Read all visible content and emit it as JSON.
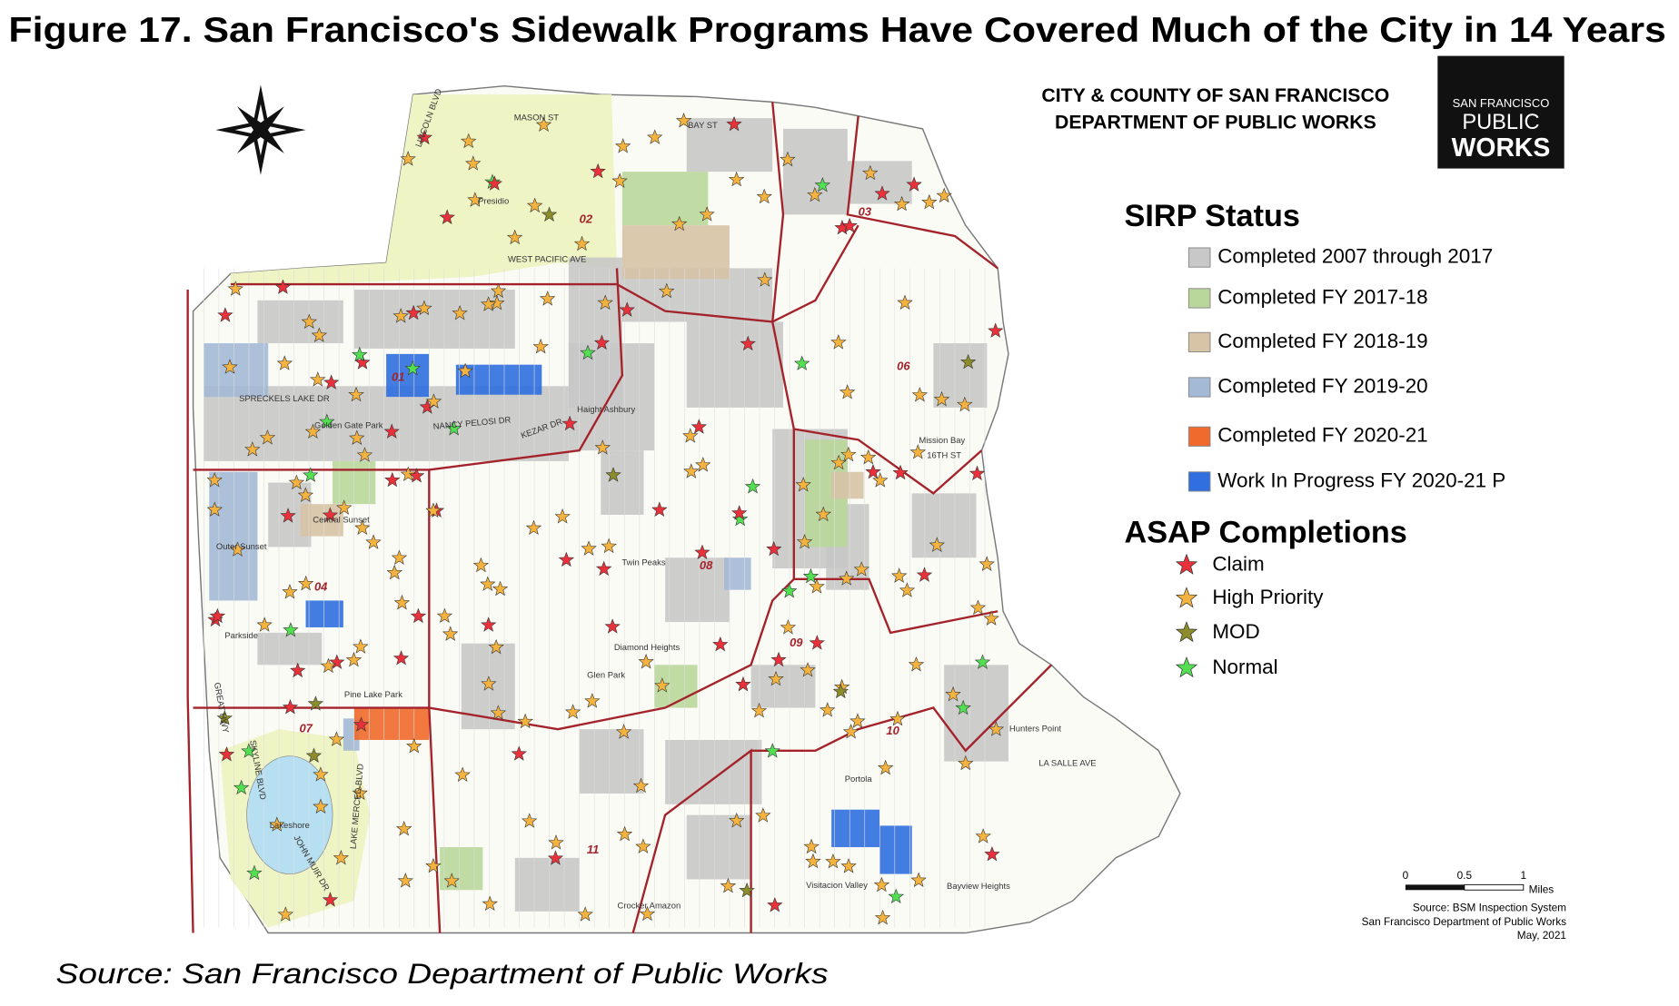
{
  "title": "Figure 17. San Francisco's Sidewalk Programs Have Covered Much of the City in 14 Years",
  "header": {
    "line1": "CITY & COUNTY OF SAN FRANCISCO",
    "line2": "DEPARTMENT OF PUBLIC WORKS"
  },
  "logo": {
    "top": "SAN FRANCISCO",
    "middle": "PUBLIC",
    "bottom": "WORKS"
  },
  "legend": {
    "sirp_title": "SIRP Status",
    "sirp_items": [
      {
        "label": "Completed 2007 through 2017",
        "color": "#c8c8c8"
      },
      {
        "label": "Completed FY 2017-18",
        "color": "#b9d79a"
      },
      {
        "label": "Completed FY 2018-19",
        "color": "#d7c3a6"
      },
      {
        "label": "Completed FY 2019-20",
        "color": "#a3b9d6"
      },
      {
        "label": "Completed FY 2020-21",
        "color": "#ef6a2c"
      },
      {
        "label": "Work In Progress FY 2020-21 P",
        "color": "#2f6fe0"
      }
    ],
    "asap_title": "ASAP Completions",
    "asap_items": [
      {
        "label": "Claim",
        "color": "#e8313a"
      },
      {
        "label": "High Priority",
        "color": "#f4b23e"
      },
      {
        "label": "MOD",
        "color": "#8c8c2a"
      },
      {
        "label": "Normal",
        "color": "#52e052"
      }
    ]
  },
  "map_labels": [
    "Presidio",
    "LINCOLN BLVD",
    "MASON ST",
    "BAY ST",
    "WEST PACIFIC AVE",
    "Golden Gate Park",
    "SPRECKELS LAKE DR",
    "NANCY PELOSI DR",
    "KEZAR DR",
    "Haight Ashbury",
    "Outer Sunset",
    "Central Sunset",
    "Parkside",
    "Pine Lake Park",
    "Lakeshore",
    "SKYLINE BLVD",
    "JOHN MUIR DR",
    "LAKE MERCED BLVD",
    "GREAT HWY",
    "Mission Bay",
    "16TH ST",
    "Hunters Point",
    "LA SALLE AVE",
    "Visitacion Valley",
    "Portola",
    "Bayview Heights",
    "Diamond Heights",
    "Twin Peaks",
    "Glen Park",
    "Crocker Amazon"
  ],
  "districts": [
    "01",
    "02",
    "03",
    "04",
    "06",
    "07",
    "08",
    "09",
    "10",
    "11"
  ],
  "scale_bar": {
    "ticks": [
      "0",
      "0.5",
      "1"
    ],
    "unit": "Miles"
  },
  "credits": [
    "Source: BSM Inspection System",
    "San Francisco Department of Public Works",
    "May, 2021"
  ],
  "source": "Source: San Francisco Department of Public Works"
}
